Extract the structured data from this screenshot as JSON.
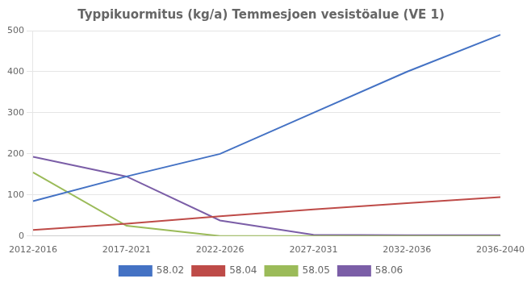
{
  "chart_data": {
    "type": "line",
    "title": "Typpikuormitus (kg/a) Temmesjoen vesistöalue (VE 1)",
    "categories": [
      "2012-2016",
      "2017-2021",
      "2022-2026",
      "2027-2031",
      "2032-2036",
      "2036-2040"
    ],
    "series": [
      {
        "name": "58.02",
        "color": "#4472C4",
        "values": [
          85,
          145,
          200,
          300,
          400,
          490
        ]
      },
      {
        "name": "58.04",
        "color": "#BE4B48",
        "values": [
          15,
          30,
          48,
          65,
          80,
          95
        ]
      },
      {
        "name": "58.05",
        "color": "#9BBB59",
        "values": [
          155,
          25,
          0,
          0,
          0,
          0
        ]
      },
      {
        "name": "58.06",
        "color": "#7B5EA7",
        "values": [
          193,
          145,
          38,
          3,
          2,
          2
        ]
      }
    ],
    "ylim": [
      0,
      500
    ],
    "yticks": [
      0,
      100,
      200,
      300,
      400,
      500
    ],
    "grid": "y",
    "legend": "bottom"
  }
}
